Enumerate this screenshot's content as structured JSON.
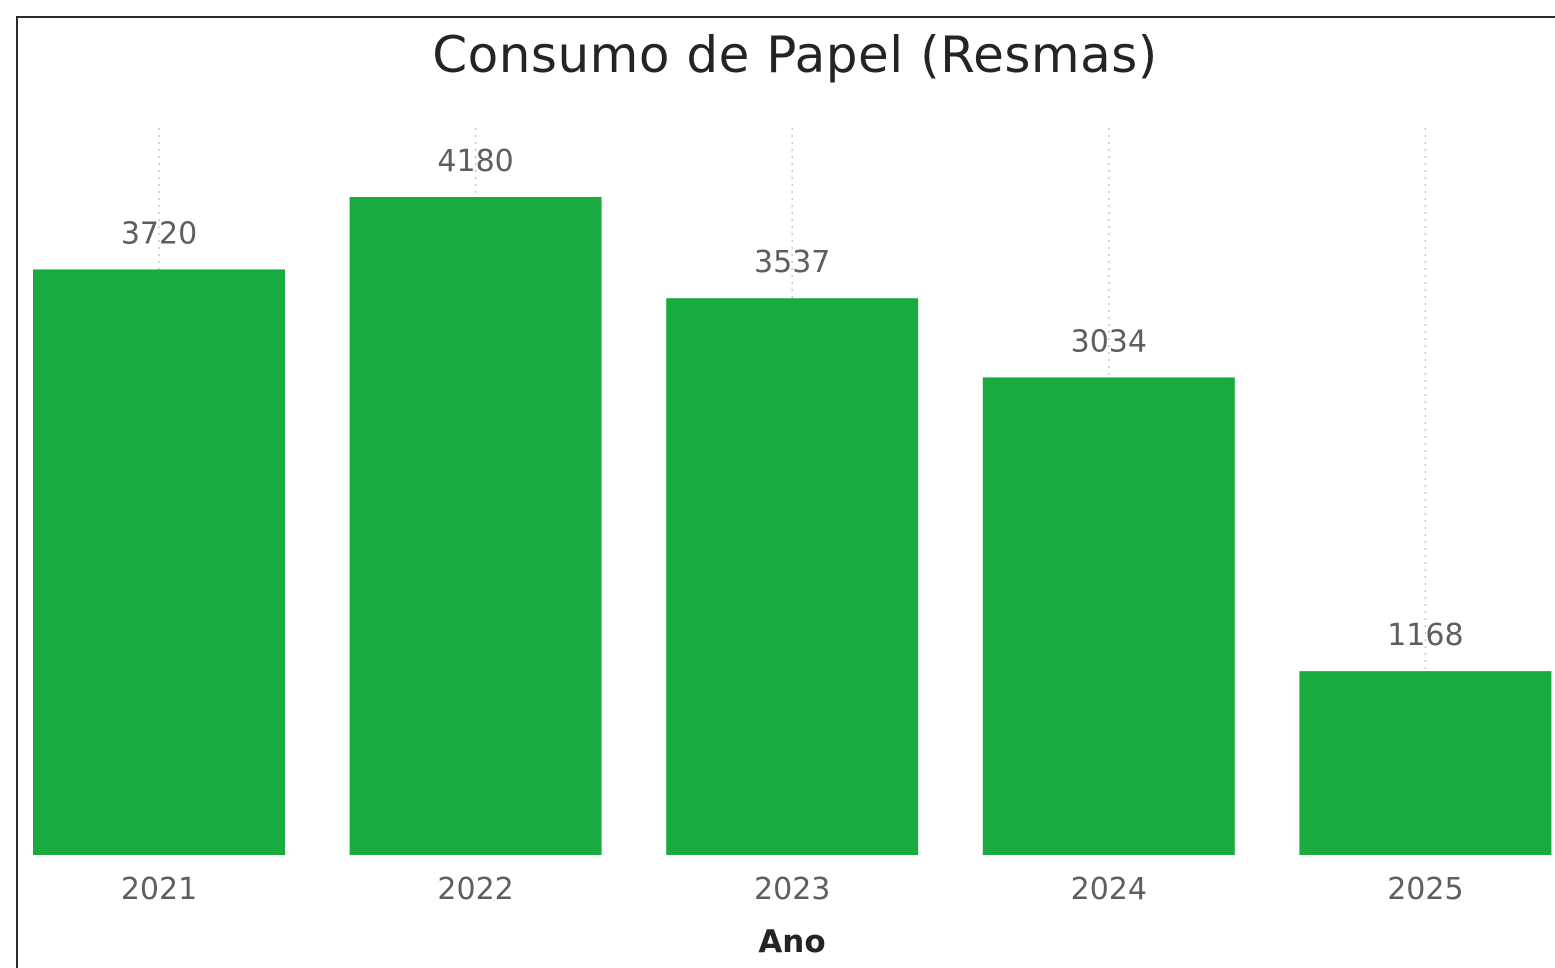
{
  "chart_data": {
    "type": "bar",
    "title": "Consumo de Papel (Resmas)",
    "xlabel": "Ano",
    "ylabel": "",
    "categories": [
      "2021",
      "2022",
      "2023",
      "2024",
      "2025"
    ],
    "values": [
      3720,
      4180,
      3537,
      3034,
      1168
    ],
    "data_labels": [
      "3720",
      "4180",
      "3537",
      "3034",
      "1168"
    ],
    "ylim": [
      0,
      4180
    ],
    "grid": "vertical dotted",
    "bar_color": "#1aab40",
    "gridline_color": "#c8c6c4",
    "label_color": "#605e5c",
    "title_color": "#252423"
  }
}
